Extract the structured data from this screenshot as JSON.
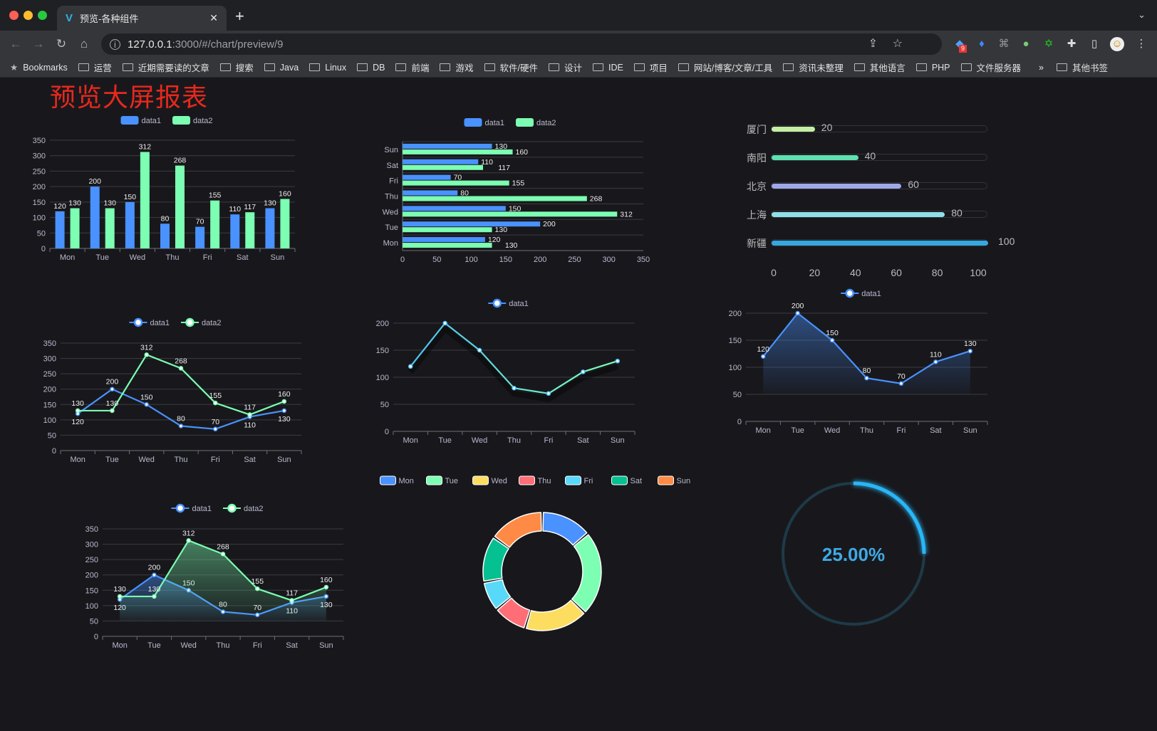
{
  "browser": {
    "tab_title": "预览-各种组件",
    "url_host": "127.0.0.1",
    "url_path": ":3000/#/chart/preview/9",
    "extension_badge": "9",
    "bookmarks": [
      "Bookmarks",
      "运营",
      "近期需要读的文章",
      "搜索",
      "Java",
      "Linux",
      "DB",
      "前端",
      "游戏",
      "软件/硬件",
      "设计",
      "IDE",
      "项目",
      "网站/博客/文章/工具",
      "资讯未整理",
      "其他语言",
      "PHP",
      "文件服务器"
    ],
    "bookmarks_overflow": "»",
    "other_bookmarks": "其他书签"
  },
  "page": {
    "title": "预览大屏报表",
    "title_color": "#e8281d",
    "background": "#18181c"
  },
  "colors": {
    "data1": "#4992ff",
    "data2": "#7cffb2"
  },
  "chart_data": [
    {
      "type": "bar",
      "categories": [
        "Mon",
        "Tue",
        "Wed",
        "Thu",
        "Fri",
        "Sat",
        "Sun"
      ],
      "series": [
        {
          "name": "data1",
          "values": [
            120,
            200,
            150,
            80,
            70,
            110,
            130
          ]
        },
        {
          "name": "data2",
          "values": [
            130,
            130,
            312,
            268,
            155,
            117,
            160
          ]
        }
      ],
      "ylim": [
        0,
        350
      ],
      "yticks": [
        0,
        50,
        100,
        150,
        200,
        250,
        300,
        350
      ],
      "legend": "top",
      "grid": true
    },
    {
      "type": "bar",
      "orientation": "horizontal",
      "categories": [
        "Mon",
        "Tue",
        "Wed",
        "Thu",
        "Fri",
        "Sat",
        "Sun"
      ],
      "series": [
        {
          "name": "data1",
          "values": [
            120,
            200,
            150,
            80,
            70,
            110,
            130
          ]
        },
        {
          "name": "data2",
          "values": [
            130,
            130,
            312,
            268,
            155,
            117,
            160
          ]
        }
      ],
      "xlim": [
        0,
        350
      ],
      "xticks": [
        0,
        50,
        100,
        150,
        200,
        250,
        300,
        350
      ],
      "legend": "top",
      "grid": true
    },
    {
      "type": "bar",
      "orientation": "horizontal",
      "style": "progress",
      "categories": [
        "厦门",
        "南阳",
        "北京",
        "上海",
        "新疆"
      ],
      "values": [
        20,
        40,
        60,
        80,
        100
      ],
      "colors": [
        "#c5f0a4",
        "#5ee0b0",
        "#9ea8e8",
        "#8fe0e8",
        "#35a8e0"
      ],
      "xlim": [
        0,
        100
      ],
      "xticks": [
        0,
        20,
        40,
        60,
        80,
        100
      ]
    },
    {
      "type": "line",
      "categories": [
        "Mon",
        "Tue",
        "Wed",
        "Thu",
        "Fri",
        "Sat",
        "Sun"
      ],
      "series": [
        {
          "name": "data1",
          "values": [
            120,
            200,
            150,
            80,
            70,
            110,
            130
          ]
        },
        {
          "name": "data2",
          "values": [
            130,
            130,
            312,
            268,
            155,
            117,
            160
          ]
        }
      ],
      "ylim": [
        0,
        350
      ],
      "yticks": [
        0,
        50,
        100,
        150,
        200,
        250,
        300,
        350
      ],
      "legend": "top",
      "grid": true
    },
    {
      "type": "line",
      "categories": [
        "Mon",
        "Tue",
        "Wed",
        "Thu",
        "Fri",
        "Sat",
        "Sun"
      ],
      "series": [
        {
          "name": "data1",
          "values": [
            120,
            200,
            150,
            80,
            70,
            110,
            130
          ]
        }
      ],
      "line_gradient": [
        "#4fc3f7",
        "#7cffb2"
      ],
      "ylim": [
        0,
        200
      ],
      "yticks": [
        0,
        50,
        100,
        150,
        200
      ],
      "legend": "top",
      "grid": true
    },
    {
      "type": "area",
      "categories": [
        "Mon",
        "Tue",
        "Wed",
        "Thu",
        "Fri",
        "Sat",
        "Sun"
      ],
      "series": [
        {
          "name": "data1",
          "values": [
            120,
            200,
            150,
            80,
            70,
            110,
            130
          ]
        }
      ],
      "ylim": [
        0,
        200
      ],
      "yticks": [
        0,
        50,
        100,
        150,
        200
      ],
      "legend": "top",
      "grid": true
    },
    {
      "type": "area",
      "categories": [
        "Mon",
        "Tue",
        "Wed",
        "Thu",
        "Fri",
        "Sat",
        "Sun"
      ],
      "series": [
        {
          "name": "data1",
          "values": [
            120,
            200,
            150,
            80,
            70,
            110,
            130
          ]
        },
        {
          "name": "data2",
          "values": [
            130,
            130,
            312,
            268,
            155,
            117,
            160
          ]
        }
      ],
      "ylim": [
        0,
        350
      ],
      "yticks": [
        0,
        50,
        100,
        150,
        200,
        250,
        300,
        350
      ],
      "legend": "top",
      "grid": true
    },
    {
      "type": "pie",
      "style": "donut",
      "categories": [
        "Mon",
        "Tue",
        "Wed",
        "Thu",
        "Fri",
        "Sat",
        "Sun"
      ],
      "values": [
        120,
        200,
        150,
        80,
        70,
        110,
        130
      ],
      "colors": [
        "#4992ff",
        "#7cffb2",
        "#fddd60",
        "#ff6e76",
        "#58d9f9",
        "#05c091",
        "#ff8a45"
      ],
      "legend": "top"
    },
    {
      "type": "gauge",
      "value": 25,
      "label": "25.00%",
      "color": "#29b6f6",
      "track_color": "#1e3a48"
    }
  ]
}
